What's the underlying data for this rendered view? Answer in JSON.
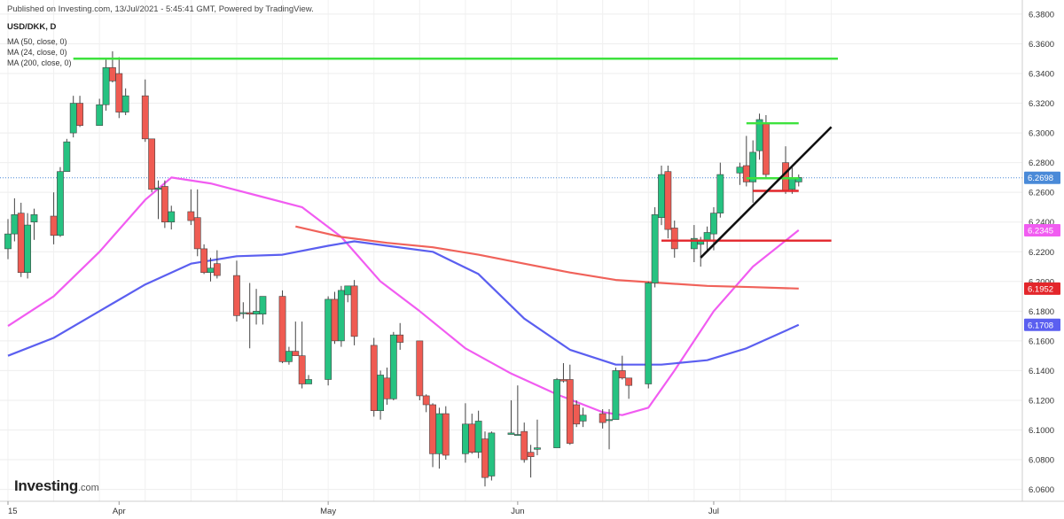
{
  "header": {
    "publish_text": "Published on Investing.com, 13/Jul/2021 - 5:45:41 GMT, Powered by TradingView.",
    "symbol": "USD/DKK, D",
    "indicators": [
      "MA (50, close, 0)",
      "MA (24, close, 0)",
      "MA (200, close, 0)"
    ]
  },
  "logo": {
    "main": "Investing",
    "suffix": ".com"
  },
  "colors": {
    "bull": "#26c281",
    "bear": "#ef5b52",
    "wick": "#444444",
    "ma50": "#5b5ff0",
    "ma24": "#f15cf1",
    "ma200": "#f0625a",
    "resistance_green": "#3ee23e",
    "support_red": "#e3262b",
    "trendline": "#111111",
    "last_price_line": "#4a8ad8"
  },
  "chart_data": {
    "type": "candlestick",
    "title": "USD/DKK, D",
    "y_axis_ticks": [
      "6.3800",
      "6.3600",
      "6.3400",
      "6.3200",
      "6.3000",
      "6.2800",
      "6.2600",
      "6.2400",
      "6.2200",
      "6.2000",
      "6.1800",
      "6.1600",
      "6.1400",
      "6.1200",
      "6.1000",
      "6.0800",
      "6.0600"
    ],
    "ylim": [
      6.052,
      6.3895
    ],
    "x_axis_labels": [
      {
        "label": "15",
        "date": "2021-03-15"
      },
      {
        "label": "Apr",
        "date": "2021-04-01"
      },
      {
        "label": "May",
        "date": "2021-05-03"
      },
      {
        "label": "Jun",
        "date": "2021-06-01"
      },
      {
        "label": "Jul",
        "date": "2021-07-01"
      }
    ],
    "price_labels": [
      {
        "label": "6.2698",
        "value": 6.2698,
        "color": "#4a8ad8"
      },
      {
        "label": "6.2345",
        "value": 6.2345,
        "color": "#f15cf1"
      },
      {
        "label": "6.1952",
        "value": 6.1952,
        "color": "#e3262b"
      },
      {
        "label": "6.1708",
        "value": 6.1708,
        "color": "#5b5ff0"
      }
    ],
    "grid": true,
    "candles": [
      {
        "date": "2021-03-15",
        "o": 6.222,
        "h": 6.242,
        "l": 6.215,
        "c": 6.232
      },
      {
        "date": "2021-03-16",
        "o": 6.232,
        "h": 6.256,
        "l": 6.227,
        "c": 6.245
      },
      {
        "date": "2021-03-17",
        "o": 6.246,
        "h": 6.253,
        "l": 6.203,
        "c": 6.206
      },
      {
        "date": "2021-03-18",
        "o": 6.206,
        "h": 6.246,
        "l": 6.202,
        "c": 6.238
      },
      {
        "date": "2021-03-19",
        "o": 6.24,
        "h": 6.249,
        "l": 6.228,
        "c": 6.245
      },
      {
        "date": "2021-03-22",
        "o": 6.244,
        "h": 6.26,
        "l": 6.225,
        "c": 6.231
      },
      {
        "date": "2021-03-23",
        "o": 6.231,
        "h": 6.277,
        "l": 6.23,
        "c": 6.274
      },
      {
        "date": "2021-03-24",
        "o": 6.274,
        "h": 6.296,
        "l": 6.274,
        "c": 6.294
      },
      {
        "date": "2021-03-25",
        "o": 6.3,
        "h": 6.325,
        "l": 6.297,
        "c": 6.32
      },
      {
        "date": "2021-03-26",
        "o": 6.32,
        "h": 6.325,
        "l": 6.304,
        "c": 6.305
      },
      {
        "date": "2021-03-29",
        "o": 6.305,
        "h": 6.323,
        "l": 6.305,
        "c": 6.319
      },
      {
        "date": "2021-03-30",
        "o": 6.319,
        "h": 6.35,
        "l": 6.315,
        "c": 6.344
      },
      {
        "date": "2021-03-31",
        "o": 6.344,
        "h": 6.355,
        "l": 6.334,
        "c": 6.335
      },
      {
        "date": "2021-04-01",
        "o": 6.34,
        "h": 6.351,
        "l": 6.31,
        "c": 6.314
      },
      {
        "date": "2021-04-02",
        "o": 6.314,
        "h": 6.33,
        "l": 6.312,
        "c": 6.325
      },
      {
        "date": "2021-04-05",
        "o": 6.325,
        "h": 6.336,
        "l": 6.294,
        "c": 6.296
      },
      {
        "date": "2021-04-06",
        "o": 6.296,
        "h": 6.296,
        "l": 6.26,
        "c": 6.262
      },
      {
        "date": "2021-04-07",
        "o": 6.262,
        "h": 6.268,
        "l": 6.242,
        "c": 6.263
      },
      {
        "date": "2021-04-08",
        "o": 6.264,
        "h": 6.268,
        "l": 6.236,
        "c": 6.24
      },
      {
        "date": "2021-04-09",
        "o": 6.24,
        "h": 6.251,
        "l": 6.235,
        "c": 6.247
      },
      {
        "date": "2021-04-12",
        "o": 6.247,
        "h": 6.262,
        "l": 6.238,
        "c": 6.241
      },
      {
        "date": "2021-04-13",
        "o": 6.243,
        "h": 6.262,
        "l": 6.217,
        "c": 6.222
      },
      {
        "date": "2021-04-14",
        "o": 6.222,
        "h": 6.225,
        "l": 6.205,
        "c": 6.206
      },
      {
        "date": "2021-04-15",
        "o": 6.206,
        "h": 6.216,
        "l": 6.2,
        "c": 6.209
      },
      {
        "date": "2021-04-16",
        "o": 6.212,
        "h": 6.221,
        "l": 6.202,
        "c": 6.204
      },
      {
        "date": "2021-04-19",
        "o": 6.204,
        "h": 6.214,
        "l": 6.173,
        "c": 6.177
      },
      {
        "date": "2021-04-20",
        "o": 6.179,
        "h": 6.186,
        "l": 6.175,
        "c": 6.179
      },
      {
        "date": "2021-04-21",
        "o": 6.179,
        "h": 6.199,
        "l": 6.155,
        "c": 6.178
      },
      {
        "date": "2021-04-22",
        "o": 6.178,
        "h": 6.195,
        "l": 6.171,
        "c": 6.18
      },
      {
        "date": "2021-04-23",
        "o": 6.178,
        "h": 6.187,
        "l": 6.171,
        "c": 6.19
      },
      {
        "date": "2021-04-26",
        "o": 6.19,
        "h": 6.194,
        "l": 6.145,
        "c": 6.146
      },
      {
        "date": "2021-04-27",
        "o": 6.146,
        "h": 6.156,
        "l": 6.144,
        "c": 6.153
      },
      {
        "date": "2021-04-28",
        "o": 6.153,
        "h": 6.173,
        "l": 6.15,
        "c": 6.15
      },
      {
        "date": "2021-04-29",
        "o": 6.15,
        "h": 6.173,
        "l": 6.128,
        "c": 6.131
      },
      {
        "date": "2021-04-30",
        "o": 6.131,
        "h": 6.137,
        "l": 6.131,
        "c": 6.134
      },
      {
        "date": "2021-05-03",
        "o": 6.134,
        "h": 6.19,
        "l": 6.13,
        "c": 6.188
      },
      {
        "date": "2021-05-04",
        "o": 6.188,
        "h": 6.193,
        "l": 6.158,
        "c": 6.16
      },
      {
        "date": "2021-05-05",
        "o": 6.16,
        "h": 6.197,
        "l": 6.156,
        "c": 6.194
      },
      {
        "date": "2021-05-06",
        "o": 6.191,
        "h": 6.197,
        "l": 6.186,
        "c": 6.197
      },
      {
        "date": "2021-05-07",
        "o": 6.197,
        "h": 6.201,
        "l": 6.157,
        "c": 6.163
      },
      {
        "date": "2021-05-10",
        "o": 6.157,
        "h": 6.162,
        "l": 6.109,
        "c": 6.113
      },
      {
        "date": "2021-05-11",
        "o": 6.113,
        "h": 6.14,
        "l": 6.107,
        "c": 6.137
      },
      {
        "date": "2021-05-12",
        "o": 6.135,
        "h": 6.142,
        "l": 6.117,
        "c": 6.121
      },
      {
        "date": "2021-05-13",
        "o": 6.121,
        "h": 6.166,
        "l": 6.12,
        "c": 6.164
      },
      {
        "date": "2021-05-14",
        "o": 6.164,
        "h": 6.172,
        "l": 6.154,
        "c": 6.159
      },
      {
        "date": "2021-05-17",
        "o": 6.16,
        "h": 6.16,
        "l": 6.12,
        "c": 6.123
      },
      {
        "date": "2021-05-18",
        "o": 6.123,
        "h": 6.124,
        "l": 6.112,
        "c": 6.117
      },
      {
        "date": "2021-05-19",
        "o": 6.117,
        "h": 6.118,
        "l": 6.075,
        "c": 6.084
      },
      {
        "date": "2021-05-20",
        "o": 6.084,
        "h": 6.115,
        "l": 6.074,
        "c": 6.111
      },
      {
        "date": "2021-05-21",
        "o": 6.111,
        "h": 6.116,
        "l": 6.08,
        "c": 6.083
      },
      {
        "date": "2021-05-24",
        "o": 6.084,
        "h": 6.118,
        "l": 6.078,
        "c": 6.104
      },
      {
        "date": "2021-05-25",
        "o": 6.104,
        "h": 6.111,
        "l": 6.084,
        "c": 6.085
      },
      {
        "date": "2021-05-26",
        "o": 6.085,
        "h": 6.113,
        "l": 6.081,
        "c": 6.106
      },
      {
        "date": "2021-05-27",
        "o": 6.094,
        "h": 6.099,
        "l": 6.062,
        "c": 6.068
      },
      {
        "date": "2021-05-28",
        "o": 6.069,
        "h": 6.099,
        "l": 6.066,
        "c": 6.098
      },
      {
        "date": "2021-05-31",
        "o": 6.097,
        "h": 6.12,
        "l": 6.097,
        "c": 6.098
      },
      {
        "date": "2021-06-01",
        "o": 6.097,
        "h": 6.13,
        "l": 6.097,
        "c": 6.097
      },
      {
        "date": "2021-06-02",
        "o": 6.099,
        "h": 6.105,
        "l": 6.078,
        "c": 6.08
      },
      {
        "date": "2021-06-03",
        "o": 6.085,
        "h": 6.09,
        "l": 6.068,
        "c": 6.082
      },
      {
        "date": "2021-06-04",
        "o": 6.087,
        "h": 6.107,
        "l": 6.083,
        "c": 6.088
      },
      {
        "date": "2021-06-07",
        "o": 6.088,
        "h": 6.135,
        "l": 6.088,
        "c": 6.134
      },
      {
        "date": "2021-06-08",
        "o": 6.134,
        "h": 6.145,
        "l": 6.132,
        "c": 6.133
      },
      {
        "date": "2021-06-09",
        "o": 6.134,
        "h": 6.144,
        "l": 6.09,
        "c": 6.091
      },
      {
        "date": "2021-06-10",
        "o": 6.117,
        "h": 6.12,
        "l": 6.102,
        "c": 6.104
      },
      {
        "date": "2021-06-11",
        "o": 6.106,
        "h": 6.115,
        "l": 6.102,
        "c": 6.11
      },
      {
        "date": "2021-06-14",
        "o": 6.111,
        "h": 6.114,
        "l": 6.101,
        "c": 6.105
      },
      {
        "date": "2021-06-15",
        "o": 6.107,
        "h": 6.114,
        "l": 6.087,
        "c": 6.107
      },
      {
        "date": "2021-06-16",
        "o": 6.107,
        "h": 6.142,
        "l": 6.107,
        "c": 6.14
      },
      {
        "date": "2021-06-17",
        "o": 6.14,
        "h": 6.15,
        "l": 6.134,
        "c": 6.135
      },
      {
        "date": "2021-06-18",
        "o": 6.135,
        "h": 6.135,
        "l": 6.121,
        "c": 6.13
      },
      {
        "date": "2021-06-21",
        "o": 6.131,
        "h": 6.2,
        "l": 6.128,
        "c": 6.199
      },
      {
        "date": "2021-06-22",
        "o": 6.199,
        "h": 6.25,
        "l": 6.196,
        "c": 6.245
      },
      {
        "date": "2021-06-23",
        "o": 6.243,
        "h": 6.278,
        "l": 6.238,
        "c": 6.272
      },
      {
        "date": "2021-06-24",
        "o": 6.274,
        "h": 6.278,
        "l": 6.229,
        "c": 6.235
      },
      {
        "date": "2021-06-25",
        "o": 6.236,
        "h": 6.241,
        "l": 6.216,
        "c": 6.222
      },
      {
        "date": "2021-06-28",
        "o": 6.222,
        "h": 6.238,
        "l": 6.213,
        "c": 6.229
      },
      {
        "date": "2021-06-29",
        "o": 6.225,
        "h": 6.23,
        "l": 6.21,
        "c": 6.228
      },
      {
        "date": "2021-06-30",
        "o": 6.228,
        "h": 6.237,
        "l": 6.22,
        "c": 6.233
      },
      {
        "date": "2021-07-01",
        "o": 6.232,
        "h": 6.25,
        "l": 6.221,
        "c": 6.246
      },
      {
        "date": "2021-07-02",
        "o": 6.246,
        "h": 6.28,
        "l": 6.243,
        "c": 6.272
      },
      {
        "date": "2021-07-05",
        "o": 6.273,
        "h": 6.28,
        "l": 6.265,
        "c": 6.277
      },
      {
        "date": "2021-07-06",
        "o": 6.278,
        "h": 6.298,
        "l": 6.264,
        "c": 6.267
      },
      {
        "date": "2021-07-07",
        "o": 6.267,
        "h": 6.295,
        "l": 6.253,
        "c": 6.287
      },
      {
        "date": "2021-07-08",
        "o": 6.288,
        "h": 6.313,
        "l": 6.282,
        "c": 6.309
      },
      {
        "date": "2021-07-09",
        "o": 6.306,
        "h": 6.312,
        "l": 6.27,
        "c": 6.272
      },
      {
        "date": "2021-07-12",
        "o": 6.28,
        "h": 6.291,
        "l": 6.259,
        "c": 6.261
      },
      {
        "date": "2021-07-13",
        "o": 6.262,
        "h": 6.278,
        "l": 6.259,
        "c": 6.27
      },
      {
        "date": "2021-07-14",
        "o": 6.267,
        "h": 6.272,
        "l": 6.264,
        "c": 6.27
      }
    ],
    "moving_averages": [
      {
        "name": "MA (24, close, 0)",
        "color": "#f15cf1",
        "points": [
          [
            "2021-03-15",
            6.17
          ],
          [
            "2021-03-22",
            6.19
          ],
          [
            "2021-03-29",
            6.22
          ],
          [
            "2021-04-05",
            6.255
          ],
          [
            "2021-04-09",
            6.27
          ],
          [
            "2021-04-15",
            6.266
          ],
          [
            "2021-04-22",
            6.258
          ],
          [
            "2021-04-29",
            6.25
          ],
          [
            "2021-05-05",
            6.23
          ],
          [
            "2021-05-11",
            6.2
          ],
          [
            "2021-05-17",
            6.18
          ],
          [
            "2021-05-24",
            6.155
          ],
          [
            "2021-05-31",
            6.138
          ],
          [
            "2021-06-07",
            6.124
          ],
          [
            "2021-06-14",
            6.112
          ],
          [
            "2021-06-17",
            6.11
          ],
          [
            "2021-06-21",
            6.115
          ],
          [
            "2021-06-25",
            6.14
          ],
          [
            "2021-07-01",
            6.18
          ],
          [
            "2021-07-07",
            6.21
          ],
          [
            "2021-07-14",
            6.2345
          ]
        ]
      },
      {
        "name": "MA (50, close, 0)",
        "color": "#5b5ff0",
        "points": [
          [
            "2021-03-15",
            6.15
          ],
          [
            "2021-03-22",
            6.162
          ],
          [
            "2021-03-29",
            6.18
          ],
          [
            "2021-04-05",
            6.198
          ],
          [
            "2021-04-12",
            6.212
          ],
          [
            "2021-04-19",
            6.217
          ],
          [
            "2021-04-26",
            6.218
          ],
          [
            "2021-05-03",
            6.224
          ],
          [
            "2021-05-07",
            6.227
          ],
          [
            "2021-05-12",
            6.224
          ],
          [
            "2021-05-19",
            6.22
          ],
          [
            "2021-05-26",
            6.205
          ],
          [
            "2021-06-02",
            6.175
          ],
          [
            "2021-06-09",
            6.154
          ],
          [
            "2021-06-16",
            6.144
          ],
          [
            "2021-06-23",
            6.144
          ],
          [
            "2021-06-30",
            6.147
          ],
          [
            "2021-07-06",
            6.155
          ],
          [
            "2021-07-14",
            6.1708
          ]
        ]
      },
      {
        "name": "MA (200, close, 0)",
        "color": "#f0625a",
        "points": [
          [
            "2021-04-28",
            6.237
          ],
          [
            "2021-05-05",
            6.23
          ],
          [
            "2021-05-12",
            6.226
          ],
          [
            "2021-05-19",
            6.223
          ],
          [
            "2021-05-26",
            6.218
          ],
          [
            "2021-06-02",
            6.212
          ],
          [
            "2021-06-09",
            6.206
          ],
          [
            "2021-06-16",
            6.201
          ],
          [
            "2021-06-23",
            6.199
          ],
          [
            "2021-06-30",
            6.197
          ],
          [
            "2021-07-07",
            6.1962
          ],
          [
            "2021-07-14",
            6.1952
          ]
        ]
      }
    ],
    "annotations": [
      {
        "type": "horizontal",
        "color": "#3ee23e",
        "from": "2021-03-25",
        "to": "2021-07-20",
        "y": 6.35
      },
      {
        "type": "horizontal",
        "color": "#3ee23e",
        "from": "2021-07-06",
        "to": "2021-07-14",
        "y": 6.3065
      },
      {
        "type": "horizontal",
        "color": "#3ee23e",
        "from": "2021-07-06",
        "to": "2021-07-14",
        "y": 6.2695
      },
      {
        "type": "horizontal",
        "color": "#e3262b",
        "from": "2021-06-23",
        "to": "2021-07-19",
        "y": 6.2275
      },
      {
        "type": "horizontal",
        "color": "#e3262b",
        "from": "2021-07-07",
        "to": "2021-07-14",
        "y": 6.261
      },
      {
        "type": "trendline",
        "color": "#111111",
        "from": "2021-06-29",
        "to": "2021-07-19",
        "y1": 6.216,
        "y2": 6.304
      }
    ]
  }
}
